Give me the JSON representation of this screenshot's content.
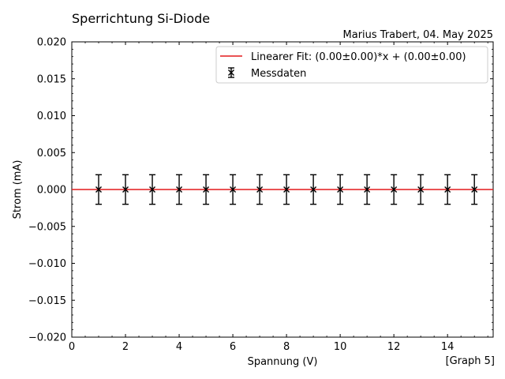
{
  "chart_data": {
    "type": "scatter",
    "title": "Sperrichtung Si-Diode",
    "subtitle": "Marius Trabert, 04. May 2025",
    "xlabel": "Spannung (V)",
    "ylabel": "Strom (mA)",
    "corner_label": "[Graph 5]",
    "xlim": [
      0,
      15.7
    ],
    "ylim": [
      -0.02,
      0.02
    ],
    "x_ticks": [
      "0",
      "2",
      "4",
      "6",
      "8",
      "10",
      "12",
      "14"
    ],
    "y_ticks": [
      "0.020",
      "0.015",
      "0.010",
      "0.005",
      "0.000",
      "−0.005",
      "−0.010",
      "−0.015",
      "−0.020"
    ],
    "grid": false,
    "legend_position": "top-right",
    "series": [
      {
        "name": "Messdaten",
        "kind": "errorbar",
        "color": "#000000",
        "marker": "x",
        "x": [
          1,
          2,
          3,
          4,
          5,
          6,
          7,
          8,
          9,
          10,
          11,
          12,
          13,
          14,
          15
        ],
        "y": [
          0,
          0,
          0,
          0,
          0,
          0,
          0,
          0,
          0,
          0,
          0,
          0,
          0,
          0,
          0
        ],
        "yerr": [
          0.002,
          0.002,
          0.002,
          0.002,
          0.002,
          0.002,
          0.002,
          0.002,
          0.002,
          0.002,
          0.002,
          0.002,
          0.002,
          0.002,
          0.002
        ]
      },
      {
        "name": "Linearer Fit:  (0.00±0.00)*x + (0.00±0.00)",
        "kind": "line",
        "color": "#e41a1c",
        "slope": 0.0,
        "intercept": 0.0
      }
    ]
  }
}
